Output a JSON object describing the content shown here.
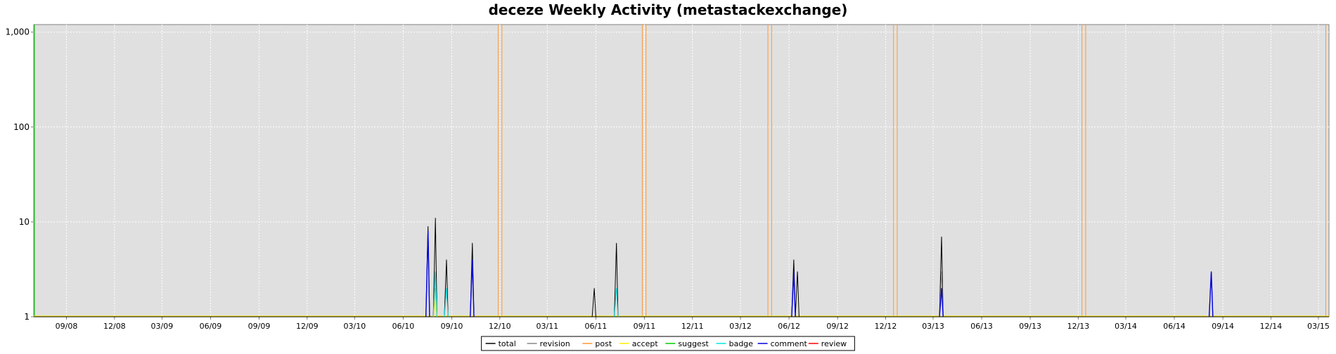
{
  "chart_data": {
    "type": "line",
    "title": "deceze Weekly Activity (metastackexchange)",
    "y_scale": "log",
    "ylim": [
      1,
      1200
    ],
    "xlim": [
      "2008-07-01",
      "2015-03-21"
    ],
    "y_ticks": [
      1,
      10,
      100,
      1000
    ],
    "y_tick_labels": [
      "1",
      "10",
      "100",
      "1,000"
    ],
    "x_ticks": [
      "2008-09-01",
      "2008-12-01",
      "2009-03-01",
      "2009-06-01",
      "2009-09-01",
      "2009-12-01",
      "2010-03-01",
      "2010-06-01",
      "2010-09-01",
      "2010-12-01",
      "2011-03-01",
      "2011-06-01",
      "2011-09-01",
      "2011-12-01",
      "2012-03-01",
      "2012-06-01",
      "2012-09-01",
      "2012-12-01",
      "2013-03-01",
      "2013-06-01",
      "2013-09-01",
      "2013-12-01",
      "2014-03-01",
      "2014-06-01",
      "2014-09-01",
      "2014-12-01",
      "2015-03-01"
    ],
    "x_tick_labels": [
      "09/08",
      "12/08",
      "03/09",
      "06/09",
      "09/09",
      "12/09",
      "03/10",
      "06/10",
      "09/10",
      "12/10",
      "03/11",
      "06/11",
      "09/11",
      "12/11",
      "03/12",
      "06/12",
      "09/12",
      "12/12",
      "03/13",
      "06/13",
      "09/13",
      "12/13",
      "03/14",
      "06/14",
      "09/14",
      "12/14",
      "03/15"
    ],
    "grid": true,
    "legend_position": "bottom-center",
    "background_color": "#e0e0e0",
    "marker_lines": {
      "color": "#ff9933",
      "dates": [
        "2010-11-28",
        "2010-12-05",
        "2011-08-28",
        "2011-09-04",
        "2012-04-22",
        "2012-04-29",
        "2012-12-16",
        "2012-12-23",
        "2013-12-08",
        "2013-12-15",
        "2015-03-15"
      ]
    },
    "series": [
      {
        "name": "total",
        "color": "#000000",
        "points": [
          [
            "2010-07-18",
            9
          ],
          [
            "2010-08-01",
            11
          ],
          [
            "2010-08-22",
            4
          ],
          [
            "2010-10-10",
            6
          ],
          [
            "2011-05-29",
            2
          ],
          [
            "2011-07-10",
            6
          ],
          [
            "2012-06-10",
            4
          ],
          [
            "2012-06-17",
            3
          ],
          [
            "2013-03-17",
            7
          ],
          [
            "2014-08-10",
            3
          ]
        ]
      },
      {
        "name": "revision",
        "color": "#888888",
        "points": [
          [
            "2010-08-01",
            3
          ],
          [
            "2013-03-17",
            3
          ]
        ]
      },
      {
        "name": "post",
        "color": "#ff9933",
        "points": [
          [
            "2010-08-01",
            2
          ]
        ]
      },
      {
        "name": "accept",
        "color": "#ffee00",
        "points": [
          [
            "2010-08-01",
            1.5
          ]
        ]
      },
      {
        "name": "suggest",
        "color": "#00cc00",
        "points": []
      },
      {
        "name": "badge",
        "color": "#00e5e5",
        "points": [
          [
            "2010-08-01",
            3
          ],
          [
            "2010-08-22",
            2
          ],
          [
            "2011-07-10",
            2
          ]
        ]
      },
      {
        "name": "comment",
        "color": "#0000dd",
        "points": [
          [
            "2010-07-18",
            8
          ],
          [
            "2010-10-10",
            4
          ],
          [
            "2012-06-10",
            3
          ],
          [
            "2013-03-17",
            2
          ],
          [
            "2014-08-10",
            3
          ]
        ]
      },
      {
        "name": "review",
        "color": "#ff0000",
        "points": []
      }
    ]
  }
}
